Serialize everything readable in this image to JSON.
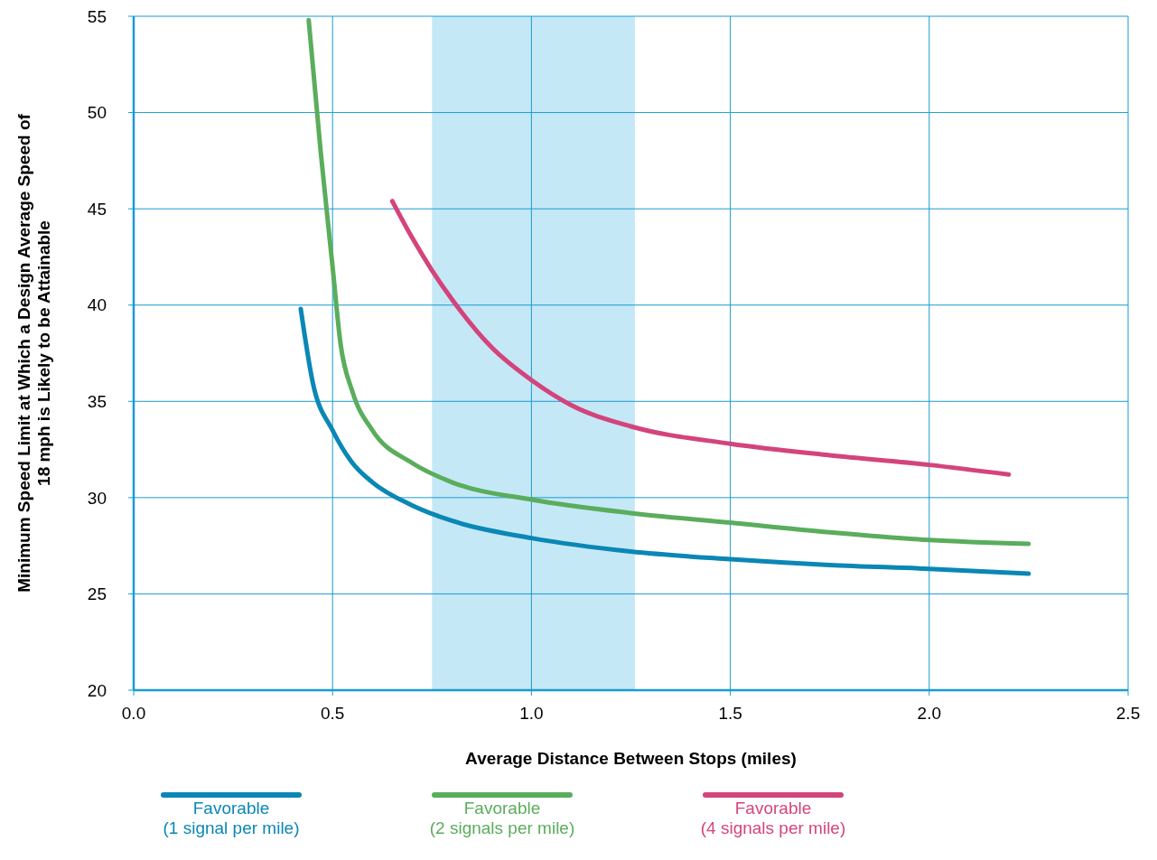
{
  "chart_data": {
    "type": "line",
    "xlabel": "Average Distance Between Stops (miles)",
    "ylabel": "Minimum Speed Limit at Which a Design Average Speed of\n18 mph is Likely to be Attainable",
    "xlim": [
      0,
      2.5
    ],
    "xticks": [
      {
        "value": 0,
        "label": "0.0"
      },
      {
        "value": 0.5,
        "label": "0.5"
      },
      {
        "value": 1,
        "label": "1.0"
      },
      {
        "value": 1.5,
        "label": "1.5"
      },
      {
        "value": 2,
        "label": "2.0"
      },
      {
        "value": 2.5,
        "label": "2.5"
      }
    ],
    "ylim": [
      20,
      55
    ],
    "yticks": [
      20,
      25,
      30,
      35,
      40,
      45,
      50,
      55
    ],
    "grid": true,
    "legend": "bottom",
    "line_style": "solid",
    "bands": [
      {
        "axis": "x",
        "from": 0.75,
        "to": 1.26,
        "color": "#c5e8f7"
      }
    ],
    "series": [
      {
        "name": "Favorable\n(1 signal per mile)",
        "color": "#0a87b5",
        "x": [
          0.42,
          0.45,
          0.5,
          0.55,
          0.6,
          0.7,
          0.8,
          1.0,
          1.25,
          1.5,
          1.75,
          2.0,
          2.25
        ],
        "values": [
          39.8,
          36,
          33.5,
          31.8,
          30.8,
          29.6,
          28.8,
          27.9,
          27.2,
          26.8,
          26.5,
          26.3,
          26.05
        ]
      },
      {
        "name": "Favorable\n(2 signals per mile)",
        "color": "#5aad5c",
        "x": [
          0.44,
          0.47,
          0.5,
          0.52,
          0.55,
          0.6,
          0.7,
          0.8,
          1.0,
          1.25,
          1.5,
          1.75,
          2.0,
          2.25
        ],
        "values": [
          54.8,
          48,
          42,
          38,
          35.5,
          33.5,
          31.8,
          30.8,
          29.9,
          29.2,
          28.7,
          28.2,
          27.8,
          27.6
        ]
      },
      {
        "name": "Favorable\n(4 signals per mile)",
        "color": "#d4447c",
        "x": [
          0.65,
          0.7,
          0.75,
          0.8,
          0.9,
          1.0,
          1.1,
          1.25,
          1.5,
          1.75,
          2.0,
          2.2
        ],
        "values": [
          45.4,
          43.5,
          41.8,
          40.3,
          37.8,
          36.1,
          34.8,
          33.7,
          32.8,
          32.2,
          31.7,
          31.2
        ]
      }
    ]
  }
}
